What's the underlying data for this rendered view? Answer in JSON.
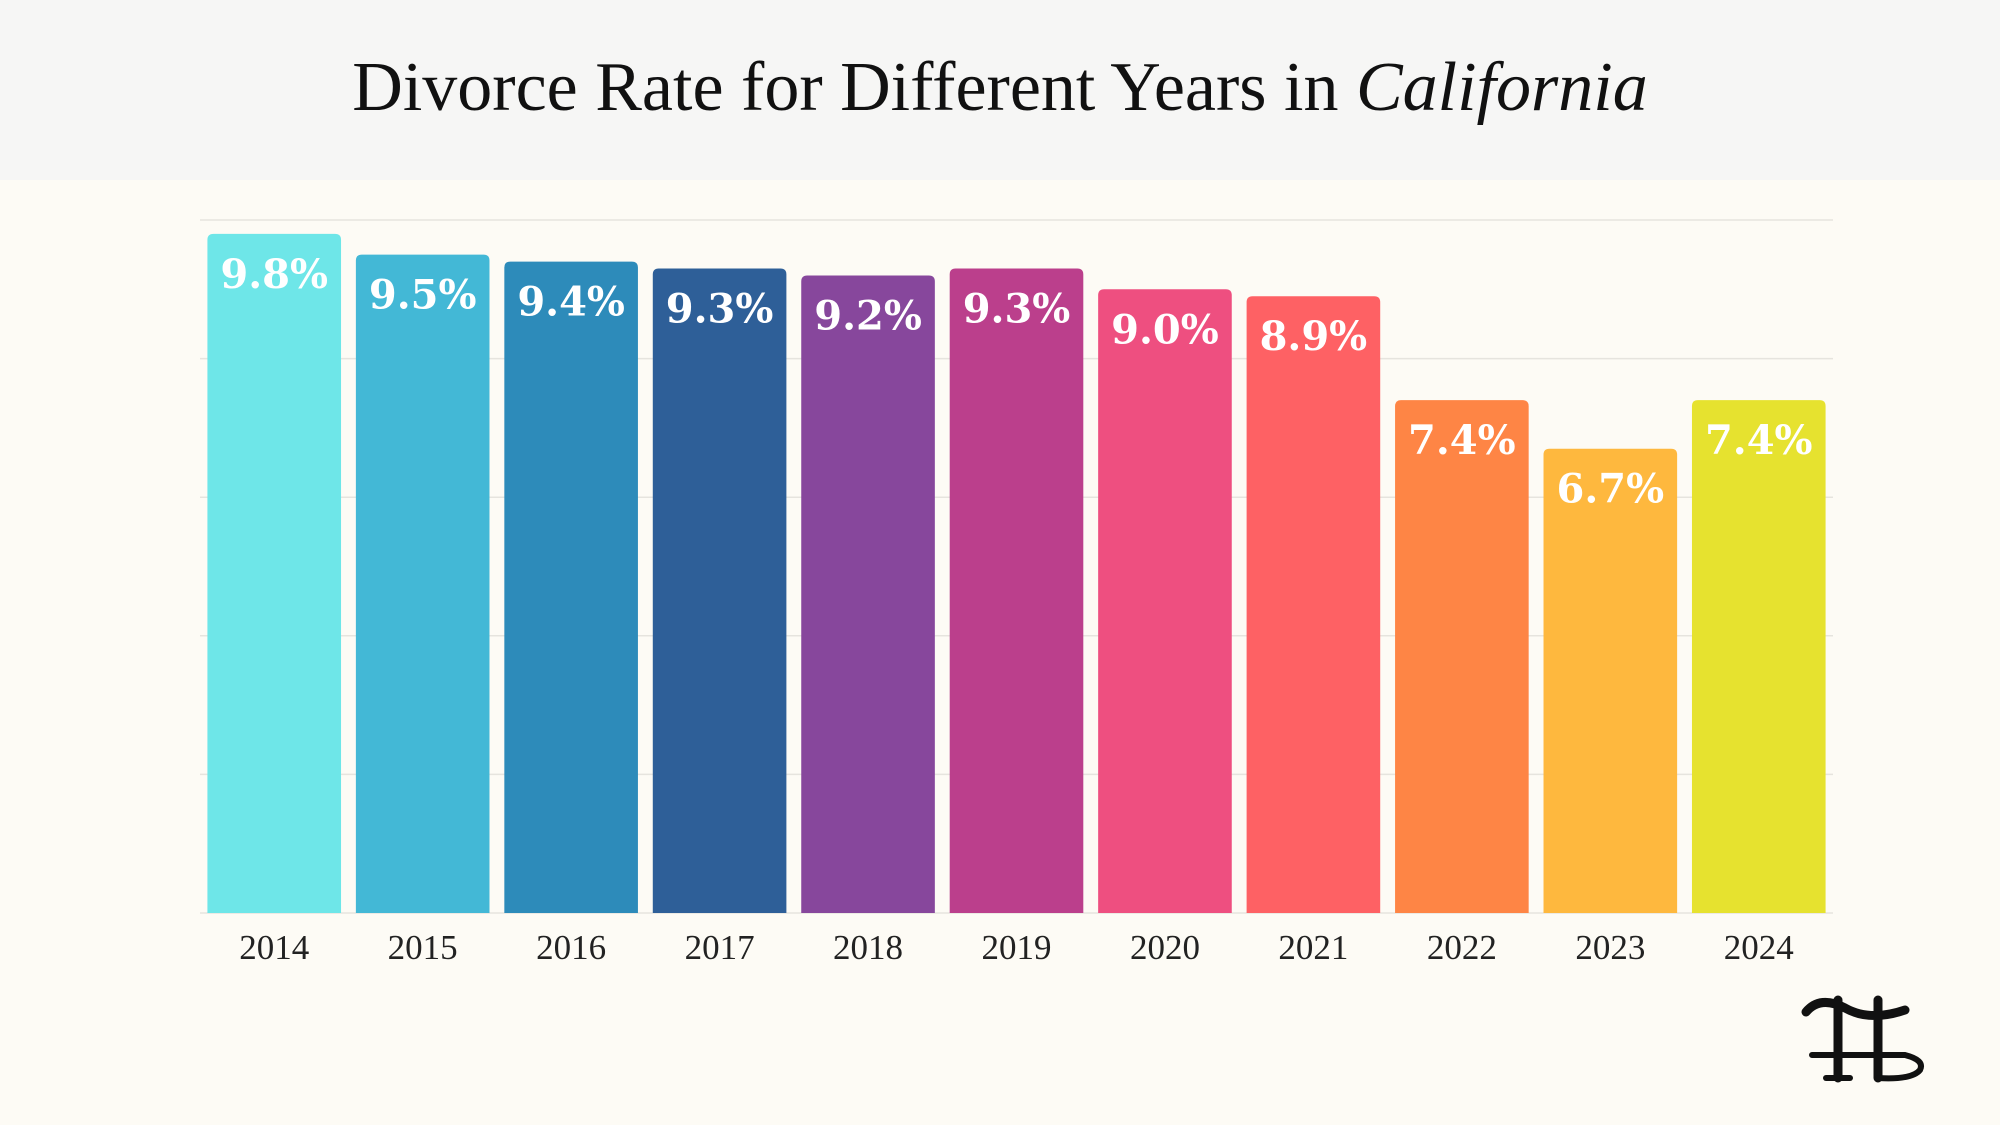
{
  "chart_data": {
    "type": "bar",
    "title": "Divorce Rate for Different Years in",
    "title_emphasis": "California",
    "categories": [
      "2014",
      "2015",
      "2016",
      "2017",
      "2018",
      "2019",
      "2020",
      "2021",
      "2022",
      "2023",
      "2024"
    ],
    "values": [
      9.8,
      9.5,
      9.4,
      9.3,
      9.2,
      9.3,
      9.0,
      8.9,
      7.4,
      6.7,
      7.4
    ],
    "value_labels": [
      "9.8%",
      "9.5%",
      "9.4%",
      "9.3%",
      "9.2%",
      "9.3%",
      "9.0%",
      "8.9%",
      "7.4%",
      "6.7%",
      "7.4%"
    ],
    "colors": [
      "#6ee6e8",
      "#43b8d6",
      "#2d8bba",
      "#2e5f98",
      "#87479c",
      "#bb3f8c",
      "#ee4f80",
      "#fe6164",
      "#fe8545",
      "#feb83e",
      "#e6e22f"
    ],
    "ylim": [
      0,
      10
    ],
    "yticks": [
      0,
      2,
      4,
      6,
      8,
      10
    ],
    "grid": true
  }
}
